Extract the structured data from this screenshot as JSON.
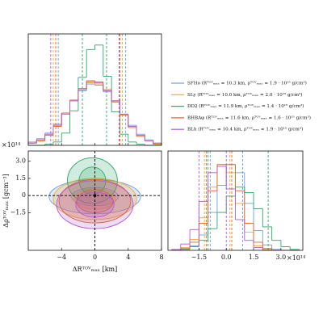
{
  "chart_data": [
    {
      "type": "histogram",
      "bins": [
        -8,
        -7,
        -6,
        -5,
        -4,
        -3,
        -2,
        -1,
        0,
        1,
        2,
        3,
        4,
        5,
        6,
        7,
        8
      ],
      "xlim": [
        -8,
        8
      ],
      "ylim": [
        0,
        100
      ],
      "xticks": [
        -4,
        0,
        4,
        8
      ],
      "series": [
        {
          "name": "SFHo (Rᵀᴼⱽₘₐₓ = 10.3 km, ρᵀᴼⱽₘₐₓ = 1.9 · 10¹⁵ g/cm³)",
          "color": "#6f9fe0",
          "values": [
            3,
            6,
            11,
            19,
            29,
            40,
            49,
            55,
            54,
            48,
            39,
            28,
            18,
            10,
            5,
            2
          ],
          "quantiles": [
            -4.4,
            3.7
          ]
        },
        {
          "name": "SLy (Rᵀᴼⱽₘₐₓ = 10.0 km, ρᵀᴼⱽₘₐₓ = 2.0 · 10¹⁵ g/cm³)",
          "color": "#f0a93a",
          "values": [
            2,
            5,
            10,
            18,
            29,
            41,
            50,
            56,
            55,
            49,
            40,
            28,
            17,
            9,
            4,
            2
          ],
          "quantiles": [
            -5.0,
            3.3
          ]
        },
        {
          "name": "DD2 (Rᵀᴼⱽₘₐₓ = 11.9 km, ρᵀᴼⱽₘₐₓ = 1.4 · 10¹⁵ g/cm³)",
          "color": "#2ea86a",
          "values": [
            0,
            0,
            1,
            3,
            11,
            31,
            61,
            86,
            90,
            62,
            30,
            10,
            3,
            1,
            0,
            0
          ],
          "quantiles": [
            -1.5,
            1.4
          ]
        },
        {
          "name": "BHBAφ (Rᵀᴼⱽₘₐₓ = 11.6 km, ρᵀᴼⱽₘₐₓ = 1.6 · 10¹⁵ g/cm³)",
          "color": "#e0651c",
          "values": [
            2,
            4,
            9,
            17,
            28,
            40,
            51,
            58,
            57,
            50,
            39,
            27,
            16,
            8,
            4,
            1
          ],
          "quantiles": [
            -4.7,
            3.0
          ]
        },
        {
          "name": "BLh (Rᵀᴼⱽₘₐₓ = 10.4 km, ρᵀᴼⱽₘₐₓ = 1.9 · 10¹⁵ g/cm³)",
          "color": "#b35bd0",
          "values": [
            2,
            5,
            10,
            18,
            29,
            40,
            50,
            57,
            56,
            49,
            40,
            28,
            17,
            9,
            4,
            2
          ],
          "quantiles": [
            -5.3,
            2.9
          ]
        }
      ]
    },
    {
      "type": "contour",
      "xlabel": "ΔRᵀᴼⱽₘₐₓ [km]",
      "ylabel": "Δρᵀᴼⱽₘₐₓ [gcm⁻³]",
      "y_offset_label": "×10¹⁴",
      "xlim": [
        -8,
        8
      ],
      "ylim": [
        -4.8,
        3.9
      ],
      "xticks": [
        {
          "value": -4,
          "label": "−4"
        },
        0,
        4,
        8
      ],
      "yticks": [
        {
          "value": -1.5,
          "label": "−1.5"
        },
        0,
        1.5,
        {
          "value": 3,
          "label": "3.0"
        }
      ],
      "truth": [
        0,
        0
      ],
      "series": [
        {
          "color": "#6f9fe0",
          "contours": [
            {
              "cx": 0,
              "cy": -0.1,
              "rx": 5.5,
              "ry": 1.5
            },
            {
              "cx": 0,
              "cy": -0.1,
              "rx": 2.8,
              "ry": 0.8
            }
          ]
        },
        {
          "color": "#f0a93a",
          "contours": [
            {
              "cx": 0,
              "cy": -0.3,
              "rx": 5.0,
              "ry": 1.8
            },
            {
              "cx": 0,
              "cy": -0.3,
              "rx": 2.5,
              "ry": 0.9
            }
          ]
        },
        {
          "color": "#2ea86a",
          "contours": [
            {
              "cx": -0.3,
              "cy": 1.3,
              "rx": 3.0,
              "ry": 2.0
            },
            {
              "cx": -0.3,
              "cy": 1.3,
              "rx": 1.6,
              "ry": 1.2
            }
          ]
        },
        {
          "color": "#e0651c",
          "contours": [
            {
              "cx": 0,
              "cy": -0.5,
              "rx": 4.3,
              "ry": 1.9
            },
            {
              "cx": 0,
              "cy": -0.5,
              "rx": 2.2,
              "ry": 1.0
            }
          ]
        },
        {
          "color": "#b35bd0",
          "contours": [
            {
              "cx": 0,
              "cy": -0.8,
              "rx": 4.6,
              "ry": 2.1
            },
            {
              "cx": 0,
              "cy": -0.8,
              "rx": 2.3,
              "ry": 1.1
            }
          ]
        }
      ]
    },
    {
      "type": "histogram",
      "x_offset_label": "×10¹⁴",
      "bins": [
        -3,
        -2.5,
        -2,
        -1.5,
        -1,
        -0.5,
        0,
        0.5,
        1,
        1.5,
        2,
        2.5,
        3,
        3.5,
        4
      ],
      "xlim": [
        -3.2,
        4.2
      ],
      "ylim": [
        0,
        110
      ],
      "xticks": [
        {
          "value": -1.5,
          "label": "−1.5"
        },
        {
          "value": 0,
          "label": "0.0"
        },
        1.5,
        {
          "value": 3,
          "label": "3.0"
        }
      ],
      "series": [
        {
          "color": "#6f9fe0",
          "values": [
            0,
            1,
            5,
            17,
            42,
            72,
            95,
            86,
            52,
            22,
            6,
            1,
            0,
            0
          ],
          "quantiles": [
            -0.88,
            0.9
          ]
        },
        {
          "color": "#f0a93a",
          "values": [
            0,
            3,
            12,
            36,
            70,
            95,
            86,
            52,
            20,
            5,
            1,
            0,
            0,
            0
          ],
          "quantiles": [
            -1.2,
            0.2
          ]
        },
        {
          "color": "#2ea86a",
          "values": [
            0,
            1,
            4,
            11,
            24,
            42,
            60,
            70,
            64,
            46,
            26,
            11,
            4,
            1
          ],
          "quantiles": [
            -1.0,
            2.3
          ]
        },
        {
          "color": "#e0651c",
          "values": [
            0,
            2,
            9,
            30,
            66,
            95,
            95,
            66,
            30,
            9,
            2,
            0,
            0,
            0
          ],
          "quantiles": [
            -1.1,
            0.3
          ]
        },
        {
          "color": "#b35bd0",
          "values": [
            1,
            7,
            23,
            54,
            86,
            93,
            68,
            34,
            11,
            3,
            0,
            0,
            0,
            0
          ],
          "quantiles": [
            -1.5,
            0.0
          ]
        }
      ]
    }
  ]
}
